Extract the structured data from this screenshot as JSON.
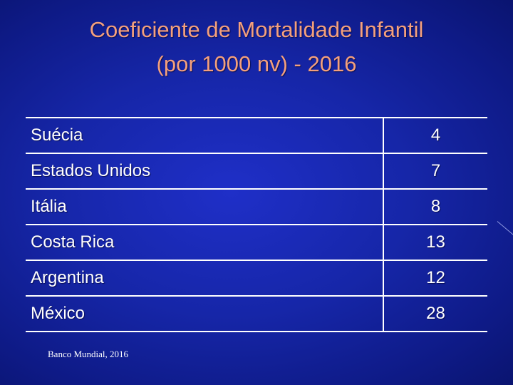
{
  "title": {
    "line1": "Coeficiente de Mortalidade Infantil",
    "line2": "(por 1000 nv) - 2016"
  },
  "table": {
    "rows": [
      {
        "country": "Suécia",
        "value": "4"
      },
      {
        "country": "Estados Unidos",
        "value": "7"
      },
      {
        "country": "Itália",
        "value": "8"
      },
      {
        "country": "Costa Rica",
        "value": "13"
      },
      {
        "country": "Argentina",
        "value": "12"
      },
      {
        "country": "México",
        "value": "28"
      }
    ]
  },
  "source": "Banco Mundial, 2016",
  "colors": {
    "background": "#1626a8",
    "title": "#f4a07c",
    "text": "#ffffff"
  }
}
